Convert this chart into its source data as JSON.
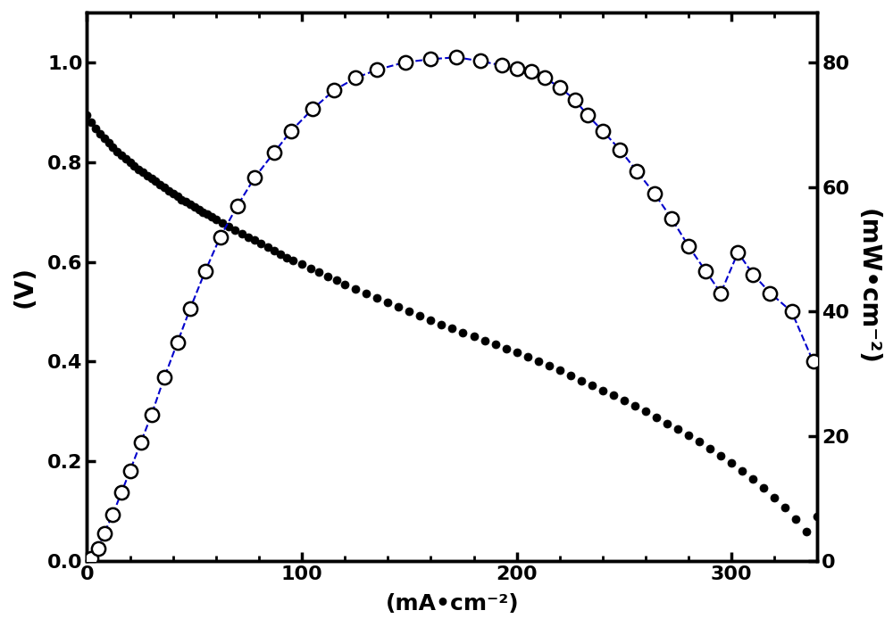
{
  "voltage_x": [
    0,
    2,
    4,
    6,
    8,
    10,
    12,
    14,
    16,
    18,
    20,
    22,
    24,
    26,
    28,
    30,
    32,
    34,
    36,
    38,
    40,
    42,
    44,
    46,
    48,
    50,
    52,
    54,
    56,
    58,
    60,
    63,
    66,
    69,
    72,
    75,
    78,
    81,
    84,
    87,
    90,
    93,
    96,
    100,
    104,
    108,
    112,
    116,
    120,
    125,
    130,
    135,
    140,
    145,
    150,
    155,
    160,
    165,
    170,
    175,
    180,
    185,
    190,
    195,
    200,
    205,
    210,
    215,
    220,
    225,
    230,
    235,
    240,
    245,
    250,
    255,
    260,
    265,
    270,
    275,
    280,
    285,
    290,
    295,
    300,
    305,
    310,
    315,
    320,
    325,
    330,
    335,
    340
  ],
  "voltage_y": [
    0.895,
    0.88,
    0.868,
    0.857,
    0.847,
    0.838,
    0.829,
    0.821,
    0.813,
    0.806,
    0.799,
    0.792,
    0.785,
    0.779,
    0.773,
    0.767,
    0.761,
    0.755,
    0.749,
    0.743,
    0.737,
    0.731,
    0.725,
    0.72,
    0.715,
    0.71,
    0.705,
    0.7,
    0.695,
    0.69,
    0.685,
    0.678,
    0.671,
    0.664,
    0.657,
    0.65,
    0.643,
    0.636,
    0.629,
    0.622,
    0.615,
    0.609,
    0.603,
    0.595,
    0.587,
    0.579,
    0.571,
    0.563,
    0.555,
    0.546,
    0.537,
    0.528,
    0.519,
    0.51,
    0.501,
    0.492,
    0.483,
    0.474,
    0.466,
    0.458,
    0.45,
    0.442,
    0.434,
    0.426,
    0.418,
    0.409,
    0.4,
    0.391,
    0.382,
    0.372,
    0.362,
    0.352,
    0.342,
    0.332,
    0.322,
    0.311,
    0.3,
    0.288,
    0.276,
    0.264,
    0.252,
    0.239,
    0.226,
    0.212,
    0.197,
    0.181,
    0.164,
    0.146,
    0.127,
    0.107,
    0.085,
    0.06,
    0.09
  ],
  "power_x": [
    2,
    5,
    8,
    12,
    16,
    20,
    25,
    30,
    36,
    42,
    48,
    55,
    62,
    70,
    78,
    87,
    95,
    105,
    115,
    125,
    135,
    148,
    160,
    172,
    183,
    193,
    200,
    207,
    213,
    220,
    227,
    233,
    240,
    248,
    256,
    264,
    272,
    280,
    288,
    295,
    303,
    310,
    318,
    328,
    338
  ],
  "power_y": [
    0.5,
    2.0,
    4.5,
    7.5,
    11.0,
    14.5,
    19.0,
    23.5,
    29.5,
    35.0,
    40.5,
    46.5,
    52.0,
    57.0,
    61.5,
    65.5,
    69.0,
    72.5,
    75.5,
    77.5,
    78.8,
    80.0,
    80.5,
    80.8,
    80.2,
    79.5,
    79.0,
    78.5,
    77.5,
    76.0,
    74.0,
    71.5,
    69.0,
    66.0,
    62.5,
    59.0,
    55.0,
    50.5,
    46.5,
    43.0,
    49.5,
    46.0,
    43.0,
    40.0,
    32.0
  ],
  "xlabel": "(mA•cm⁻²)",
  "ylabel_left": "(V)",
  "ylabel_right": "(mW•cm⁻²)",
  "xlim": [
    0,
    340
  ],
  "ylim_left": [
    0.0,
    1.1
  ],
  "ylim_right": [
    0,
    88
  ],
  "xticks": [
    0,
    100,
    200,
    300
  ],
  "yticks_left": [
    0.0,
    0.2,
    0.4,
    0.6,
    0.8,
    1.0
  ],
  "yticks_right": [
    0,
    20,
    40,
    60,
    80
  ],
  "voltage_color": "black",
  "power_color": "black",
  "dashed_color": "#0000cc",
  "fig_width": 10.0,
  "fig_height": 7.03,
  "dpi": 100,
  "background_color": "white",
  "border_linewidth": 2.5
}
